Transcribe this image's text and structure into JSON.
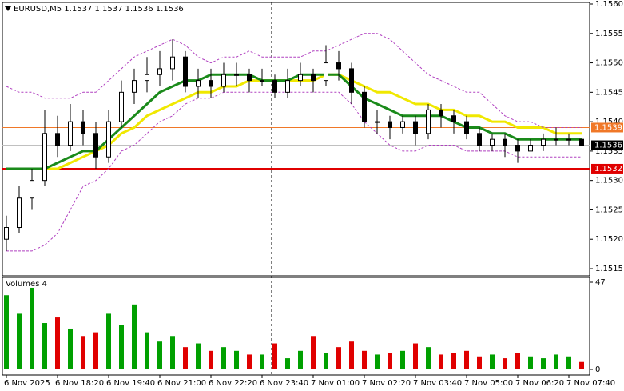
{
  "chart_data": [
    {
      "type": "candlestick",
      "title": "EURUSD,M5  1.1537 1.1537 1.1536 1.1536",
      "categories": [
        "6 Nov 2025",
        null,
        null,
        null,
        "6 Nov 18:20",
        null,
        null,
        null,
        "6 Nov 19:40",
        null,
        null,
        null,
        "6 Nov 21:00",
        null,
        null,
        null,
        "6 Nov 22:20",
        null,
        null,
        null,
        "6 Nov 23:40",
        null,
        null,
        null,
        "7 Nov 01:00",
        null,
        null,
        null,
        "7 Nov 02:20",
        null,
        null,
        null,
        "7 Nov 03:40",
        null,
        null,
        null,
        "7 Nov 05:00",
        null,
        null,
        null,
        "7 Nov 06:20",
        null,
        null,
        null,
        "7 Nov 07:40",
        null
      ],
      "open": [
        1.152,
        1.1522,
        1.1527,
        1.153,
        1.1538,
        1.1536,
        1.154,
        1.1538,
        1.1534,
        1.154,
        1.1545,
        1.1547,
        1.1548,
        1.1549,
        1.1551,
        1.1546,
        1.1547,
        1.1546,
        1.1548,
        1.1548,
        1.1547,
        1.1547,
        1.1545,
        1.1547,
        1.1548,
        1.1547,
        1.155,
        1.1549,
        1.1545,
        1.154,
        1.154,
        1.1539,
        1.154,
        1.1538,
        1.1542,
        1.1541,
        1.154,
        1.1538,
        1.1536,
        1.1537,
        1.1536,
        1.1535,
        1.1536,
        1.1537,
        1.1537,
        1.1537
      ],
      "high": [
        1.1524,
        1.1529,
        1.1532,
        1.1542,
        1.1541,
        1.1543,
        1.1542,
        1.154,
        1.1542,
        1.1547,
        1.1549,
        1.1551,
        1.1552,
        1.1554,
        1.1552,
        1.1549,
        1.1549,
        1.155,
        1.155,
        1.1549,
        1.1549,
        1.1548,
        1.1549,
        1.155,
        1.1549,
        1.1553,
        1.1552,
        1.155,
        1.1546,
        1.1542,
        1.1541,
        1.1541,
        1.1541,
        1.1543,
        1.1543,
        1.1542,
        1.1541,
        1.1539,
        1.1538,
        1.1538,
        1.1537,
        1.1537,
        1.1538,
        1.1539,
        1.1538,
        1.1537
      ],
      "low": [
        1.1518,
        1.1521,
        1.1525,
        1.1529,
        1.1534,
        1.1535,
        1.1536,
        1.1532,
        1.1533,
        1.1539,
        1.1543,
        1.1545,
        1.1546,
        1.1547,
        1.1545,
        1.1544,
        1.1544,
        1.1545,
        1.1546,
        1.1545,
        1.1546,
        1.1544,
        1.1544,
        1.1546,
        1.1545,
        1.1546,
        1.1547,
        1.1543,
        1.1539,
        1.1538,
        1.1537,
        1.1538,
        1.1536,
        1.1537,
        1.1539,
        1.1538,
        1.1537,
        1.1535,
        1.1535,
        1.1534,
        1.1533,
        1.1535,
        1.1535,
        1.1536,
        1.1536,
        1.1536
      ],
      "close": [
        1.1522,
        1.1527,
        1.153,
        1.1538,
        1.1536,
        1.154,
        1.1538,
        1.1534,
        1.154,
        1.1545,
        1.1547,
        1.1548,
        1.1549,
        1.1551,
        1.1546,
        1.1547,
        1.1546,
        1.1548,
        1.1548,
        1.1547,
        1.1547,
        1.1545,
        1.1547,
        1.1548,
        1.1547,
        1.155,
        1.1549,
        1.1545,
        1.154,
        1.154,
        1.1539,
        1.154,
        1.1538,
        1.1542,
        1.1541,
        1.154,
        1.1538,
        1.1536,
        1.1537,
        1.1536,
        1.1535,
        1.1536,
        1.1537,
        1.1537,
        1.1537,
        1.1536
      ],
      "up_color": "#ffffff",
      "down_color": "#000000",
      "wick_color": "#000000",
      "indicators": [
        {
          "color": "#f0e800",
          "width": 3,
          "dash": "",
          "values": [
            null,
            null,
            null,
            1.1532,
            1.1532,
            1.1533,
            1.1534,
            1.1535,
            1.1536,
            1.1538,
            1.1539,
            1.1541,
            1.1542,
            1.1543,
            1.1544,
            1.1545,
            1.1545,
            1.1546,
            1.1546,
            1.1547,
            1.1547,
            1.1547,
            1.1547,
            1.1547,
            1.1547,
            1.1548,
            1.1548,
            1.1547,
            1.1546,
            1.1545,
            1.1545,
            1.1544,
            1.1543,
            1.1543,
            1.1542,
            1.1542,
            1.1541,
            1.1541,
            1.154,
            1.154,
            1.1539,
            1.1539,
            1.1539,
            1.1538,
            1.1538,
            1.1538
          ]
        },
        {
          "color": "#1a8a1a",
          "width": 3,
          "dash": "",
          "values": [
            1.1532,
            1.1532,
            1.1532,
            1.1532,
            1.1533,
            1.1534,
            1.1535,
            1.1535,
            1.1537,
            1.1539,
            1.1541,
            1.1543,
            1.1545,
            1.1546,
            1.1547,
            1.1547,
            1.1548,
            1.1548,
            1.1548,
            1.1548,
            1.1547,
            1.1547,
            1.1547,
            1.1548,
            1.1548,
            1.1548,
            1.1548,
            1.1546,
            1.1544,
            1.1543,
            1.1542,
            1.1541,
            1.1541,
            1.1541,
            1.1541,
            1.154,
            1.1539,
            1.1539,
            1.1538,
            1.1538,
            1.1537,
            1.1537,
            1.1537,
            1.1537,
            1.1537,
            1.1537
          ]
        },
        {
          "color": "#b040c0",
          "width": 1,
          "dash": "3 2",
          "values": [
            1.1546,
            1.1545,
            1.1545,
            1.1544,
            1.1544,
            1.1544,
            1.1545,
            1.1545,
            1.1547,
            1.1549,
            1.1551,
            1.1552,
            1.1553,
            1.1554,
            1.1553,
            1.1551,
            1.155,
            1.1551,
            1.1551,
            1.1552,
            1.1551,
            1.1551,
            1.1551,
            1.1551,
            1.1552,
            1.1552,
            1.1553,
            1.1554,
            1.1555,
            1.1555,
            1.1554,
            1.1552,
            1.155,
            1.1548,
            1.1547,
            1.1546,
            1.1545,
            1.1545,
            1.1543,
            1.1541,
            1.154,
            1.154,
            1.1539,
            1.1539,
            1.1539,
            1.1539
          ]
        },
        {
          "color": "#b040c0",
          "width": 1,
          "dash": "3 2",
          "values": [
            1.1518,
            1.1518,
            1.1518,
            1.1519,
            1.1521,
            1.1525,
            1.1529,
            1.153,
            1.1532,
            1.1535,
            1.1536,
            1.1538,
            1.154,
            1.1541,
            1.1543,
            1.1544,
            1.1544,
            1.1545,
            1.1545,
            1.1545,
            1.1545,
            1.1545,
            1.1545,
            1.1545,
            1.1545,
            1.1545,
            1.1545,
            1.1543,
            1.154,
            1.1538,
            1.1536,
            1.1535,
            1.1535,
            1.1536,
            1.1536,
            1.1536,
            1.1535,
            1.1535,
            1.1535,
            1.1535,
            1.1534,
            1.1534,
            1.1534,
            1.1534,
            1.1534,
            1.1534
          ]
        }
      ],
      "levels": [
        {
          "value": 1.1539,
          "color": "#f07828"
        },
        {
          "value": 1.1532,
          "color": "#e00000"
        }
      ],
      "last_price": 1.1536,
      "ylim": [
        1.1515,
        1.156
      ],
      "yticks": [
        1.1515,
        {
          "value": 1.152,
          "label": "1.1520"
        },
        1.1525,
        {
          "value": 1.153,
          "label": "1.1530"
        },
        1.1535,
        {
          "value": 1.154,
          "label": "1.1540"
        },
        1.1545,
        {
          "value": 1.155,
          "label": "1.1550"
        },
        1.1555,
        {
          "value": 1.156,
          "label": "1.1560"
        }
      ]
    },
    {
      "type": "bar",
      "title": "Volumes 4",
      "values": [
        40,
        30,
        44,
        25,
        28,
        22,
        18,
        20,
        30,
        24,
        35,
        20,
        15,
        18,
        12,
        14,
        10,
        12,
        10,
        8,
        8,
        14,
        6,
        10,
        18,
        9,
        12,
        15,
        10,
        8,
        9,
        10,
        14,
        12,
        8,
        9,
        10,
        7,
        8,
        6,
        9,
        7,
        6,
        8,
        7,
        4
      ],
      "up_color": "#00a000",
      "down_color": "#e00000",
      "ylim": [
        0,
        47
      ],
      "yticks": [
        0,
        47
      ]
    }
  ]
}
